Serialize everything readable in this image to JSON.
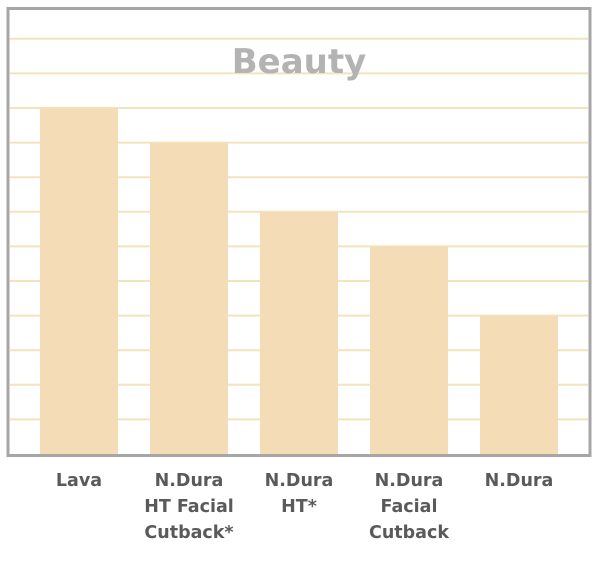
{
  "chart_data": {
    "type": "bar",
    "title": "Beauty",
    "categories": [
      "Lava",
      "N.Dura\nHT Facial\nCutback*",
      "N.Dura\nHT*",
      "N.Dura\nFacial\nCutback",
      "N.Dura"
    ],
    "values": [
      10,
      9,
      7,
      6,
      4
    ],
    "ylim": [
      0,
      12
    ],
    "xlabel": "",
    "ylabel": "",
    "grid": true,
    "colors": {
      "bar": "#f4dcb7",
      "grid": "#f2e4bd",
      "frame": "#a6a6a6",
      "title": "#b3b3b3",
      "label": "#5a5a5a"
    }
  }
}
